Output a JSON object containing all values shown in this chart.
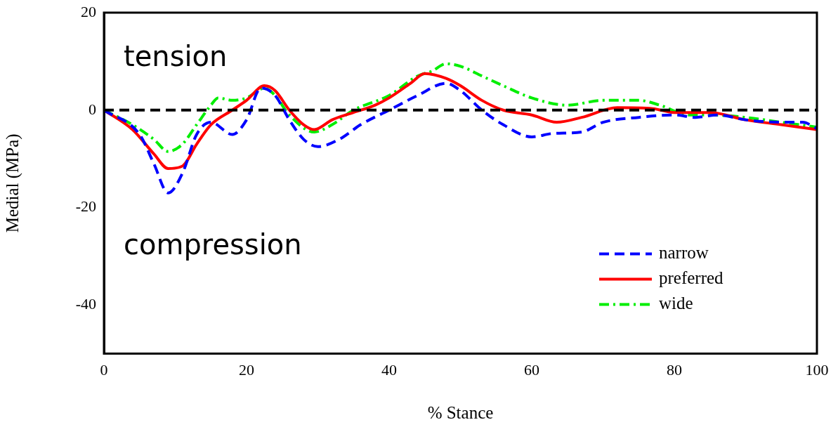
{
  "chart_data": {
    "type": "line",
    "xlabel": "% Stance",
    "ylabel": "Medial (MPa)",
    "xlim": [
      0,
      100
    ],
    "xticks": [
      0,
      20,
      40,
      60,
      80,
      100
    ],
    "ylim": [
      -50,
      20
    ],
    "yticks": [
      -40,
      -20,
      0,
      20
    ],
    "grid": false,
    "legend": "bottom right",
    "marker": "none",
    "annotations": [
      "tension",
      "compression"
    ],
    "ref_lines": [
      {
        "axis": "y",
        "value": 0,
        "color": "#000000",
        "line_style": "dashed"
      }
    ],
    "series": [
      {
        "name": "narrow",
        "color": "#0000ff",
        "line_style": "dashed",
        "x": [
          0,
          5,
          7,
          9,
          11,
          13,
          15,
          18,
          20,
          22,
          24,
          26,
          28,
          30,
          33,
          36,
          40,
          44,
          48,
          50,
          53,
          56,
          60,
          63,
          67,
          70,
          75,
          80,
          83,
          86,
          90,
          95,
          98,
          100
        ],
        "values": [
          0,
          -5,
          -11,
          -17,
          -13,
          -5,
          -2.5,
          -5,
          -2,
          4.5,
          3,
          -2,
          -6,
          -7.5,
          -6,
          -3,
          0,
          3,
          5.5,
          4,
          0,
          -3,
          -5.5,
          -4.8,
          -4.5,
          -2.5,
          -1.5,
          -1,
          -1.5,
          -1,
          -2,
          -2.5,
          -2.5,
          -3.8
        ]
      },
      {
        "name": "preferred",
        "color": "#ff0000",
        "line_style": "solid",
        "x": [
          0,
          4,
          7,
          9,
          11,
          13,
          15,
          18,
          20,
          22.5,
          24,
          26,
          28,
          29.5,
          32,
          35,
          38,
          40,
          43,
          45,
          48,
          50,
          53,
          56,
          60,
          63.5,
          67,
          72,
          77,
          80,
          85,
          90,
          95,
          100
        ],
        "values": [
          0,
          -4,
          -9,
          -12,
          -11.5,
          -7,
          -3,
          0,
          2,
          5,
          4,
          0,
          -3,
          -4,
          -2,
          -0.5,
          1,
          2.5,
          5.5,
          7.5,
          6.5,
          5,
          2,
          0,
          -1,
          -2.5,
          -1.5,
          0.5,
          0.3,
          -0.5,
          -0.5,
          -2,
          -3,
          -4
        ]
      },
      {
        "name": "wide",
        "color": "#00ee00",
        "line_style": "dashdot",
        "x": [
          0,
          4,
          7,
          9,
          11,
          13,
          15,
          16,
          18,
          20,
          22.5,
          24,
          26,
          29.5,
          32,
          35,
          40,
          44,
          46,
          48,
          50,
          53,
          56,
          60,
          65,
          70,
          75,
          78,
          82,
          85,
          90,
          95,
          100
        ],
        "values": [
          0,
          -3,
          -6,
          -8.5,
          -7,
          -3,
          1,
          2.5,
          2,
          2.5,
          4.5,
          3,
          -1,
          -4.5,
          -3,
          0,
          3,
          7,
          8,
          9.5,
          9,
          7,
          5,
          2.5,
          1,
          2,
          2,
          1,
          -1,
          -1,
          -1.5,
          -2.5,
          -3.5
        ]
      }
    ]
  }
}
